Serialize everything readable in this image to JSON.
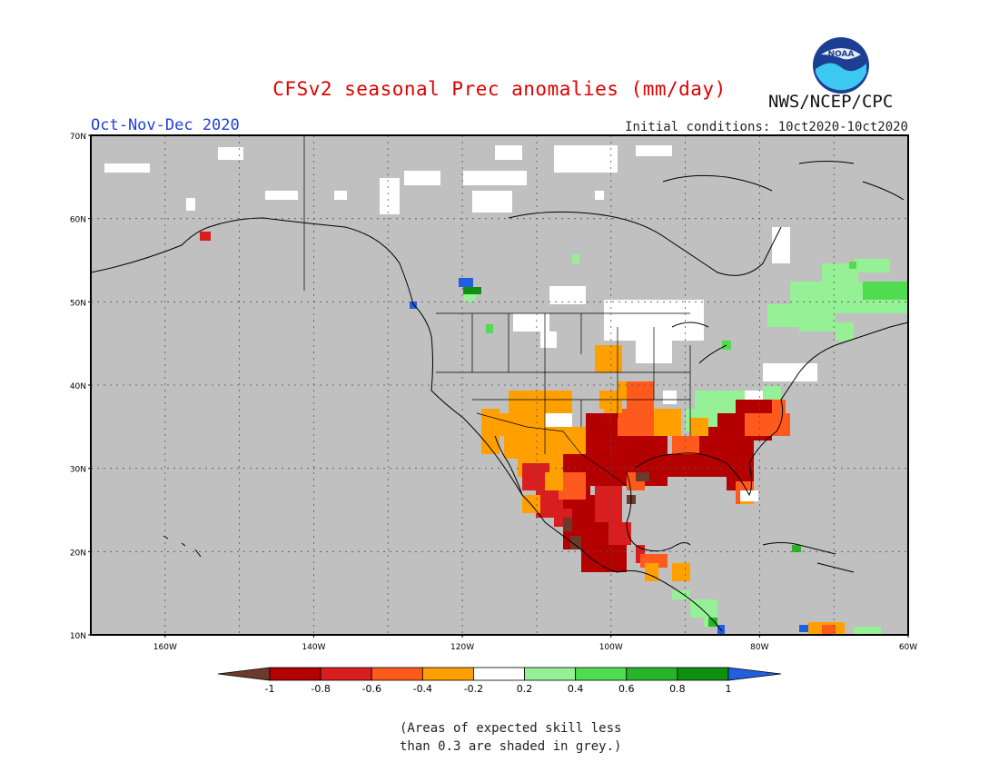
{
  "header": {
    "title": "CFSv2 seasonal Prec anomalies (mm/day)",
    "agency": "NWS/NCEP/CPC",
    "period": "Oct-Nov-Dec 2020",
    "initial_conditions": "Initial conditions: 10ct2020-10ct2020",
    "logo_text": "NOAA"
  },
  "map": {
    "lat_labels": [
      "70N",
      "60N",
      "50N",
      "40N",
      "30N",
      "20N",
      "10N"
    ],
    "lon_labels": [
      "160W",
      "140W",
      "120W",
      "100W",
      "80W",
      "60W"
    ],
    "lat_range": [
      10,
      70
    ],
    "lon_range": [
      -170,
      -60
    ],
    "background_color": "#c0c0c0"
  },
  "legend": {
    "ticks": [
      "-1",
      "-0.8",
      "-0.6",
      "-0.4",
      "-0.2",
      "0.2",
      "0.4",
      "0.6",
      "0.8",
      "1"
    ],
    "colors": [
      "#6b3a2a",
      "#b40000",
      "#d81e1e",
      "#ff5a1e",
      "#ffa000",
      "#ffffff",
      "#96f096",
      "#50dc50",
      "#28b428",
      "#109010",
      "#2060e0"
    ]
  },
  "note": {
    "line1": "(Areas of expected skill less",
    "line2": "than 0.3 are shaded in grey.)"
  }
}
